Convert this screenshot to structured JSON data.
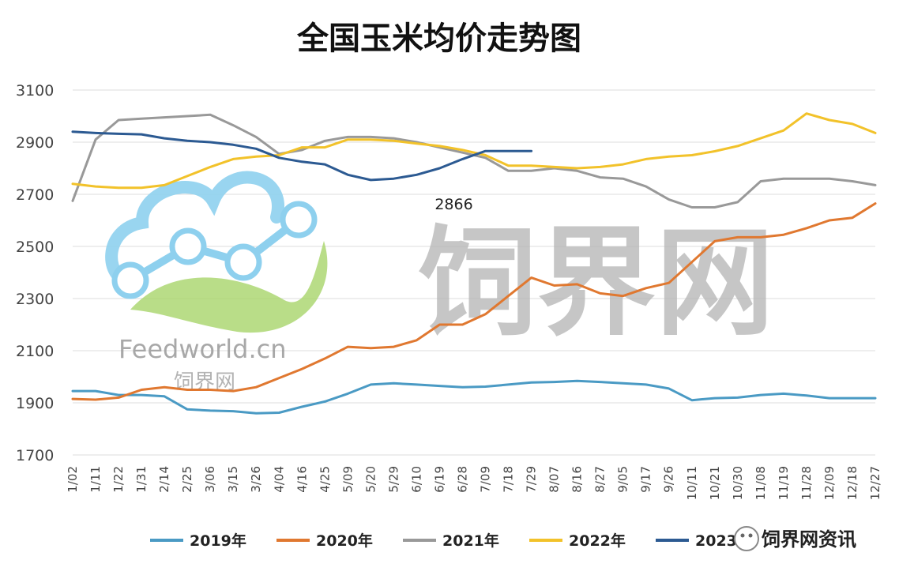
{
  "chart_data": {
    "type": "line",
    "title": "全国玉米均价走势图",
    "xlabel": "",
    "ylabel": "",
    "ylim": [
      1700,
      3100
    ],
    "yticks": [
      "3100",
      "2900",
      "2700",
      "2500",
      "2300",
      "2100",
      "1900",
      "1700"
    ],
    "grid": true,
    "legend_position": "bottom",
    "categories": [
      "1/02",
      "1/11",
      "1/22",
      "1/31",
      "2/14",
      "2/25",
      "3/06",
      "3/15",
      "3/26",
      "4/04",
      "4/16",
      "4/25",
      "5/09",
      "5/20",
      "5/29",
      "6/10",
      "6/19",
      "6/28",
      "7/09",
      "7/18",
      "7/29",
      "8/07",
      "8/16",
      "8/27",
      "9/05",
      "9/17",
      "9/26",
      "10/11",
      "10/21",
      "10/30",
      "11/08",
      "11/19",
      "11/28",
      "12/09",
      "12/18",
      "12/27"
    ],
    "series": [
      {
        "name": "2019年",
        "color": "#4a9ac4",
        "values": [
          1945,
          1945,
          1930,
          1930,
          1925,
          1875,
          1870,
          1868,
          1860,
          1862,
          1885,
          1905,
          1935,
          1970,
          1975,
          1970,
          1965,
          1960,
          1962,
          1970,
          1978,
          1980,
          1984,
          1980,
          1975,
          1970,
          1955,
          1910,
          1918,
          1920,
          1930,
          1935,
          1928,
          1918,
          1918,
          1918
        ]
      },
      {
        "name": "2020年",
        "color": "#e07830",
        "values": [
          1915,
          1912,
          1920,
          1950,
          1960,
          1950,
          1950,
          1945,
          1960,
          1995,
          2030,
          2070,
          2115,
          2110,
          2115,
          2140,
          2200,
          2200,
          2240,
          2310,
          2380,
          2350,
          2355,
          2320,
          2310,
          2340,
          2360,
          2440,
          2520,
          2535,
          2535,
          2545,
          2570,
          2600,
          2610,
          2665
        ]
      },
      {
        "name": "2021年",
        "color": "#999999",
        "values": [
          2675,
          2910,
          2985,
          2990,
          2995,
          3000,
          3005,
          2965,
          2920,
          2855,
          2870,
          2905,
          2920,
          2920,
          2915,
          2900,
          2880,
          2860,
          2840,
          2790,
          2790,
          2800,
          2790,
          2765,
          2760,
          2730,
          2680,
          2650,
          2650,
          2670,
          2750,
          2760,
          2760,
          2760,
          2750,
          2735
        ]
      },
      {
        "name": "2022年",
        "color": "#f2c22a",
        "values": [
          2740,
          2730,
          2725,
          2725,
          2735,
          2770,
          2805,
          2835,
          2845,
          2850,
          2880,
          2880,
          2910,
          2910,
          2905,
          2895,
          2885,
          2870,
          2850,
          2810,
          2810,
          2805,
          2800,
          2805,
          2815,
          2835,
          2845,
          2850,
          2865,
          2885,
          2915,
          2945,
          3010,
          2985,
          2970,
          2935
        ]
      },
      {
        "name": "2023年",
        "color": "#2c5a92",
        "values": [
          2940,
          2935,
          2932,
          2930,
          2915,
          2905,
          2900,
          2890,
          2875,
          2840,
          2825,
          2815,
          2775,
          2755,
          2760,
          2775,
          2800,
          2835,
          2866,
          2866,
          2866,
          null,
          null,
          null,
          null,
          null,
          null,
          null,
          null,
          null,
          null,
          null,
          null,
          null,
          null,
          null
        ]
      }
    ],
    "annotations": [
      {
        "text": "2866",
        "x": "7/09",
        "y": 2866
      }
    ],
    "legend": [
      {
        "label": "2019年",
        "color": "#4a9ac4"
      },
      {
        "label": "2020年",
        "color": "#e07830"
      },
      {
        "label": "2021年",
        "color": "#999999"
      },
      {
        "label": "2022年",
        "color": "#f2c22a"
      },
      {
        "label": "2023",
        "color": "#2c5a92"
      }
    ]
  },
  "watermark": {
    "center_text": "饲界网",
    "logo_en": "Feedworld.cn",
    "logo_cn": "饲界网",
    "badge_text": "饲界网资讯",
    "colors": {
      "cloud": "#8ed0ee",
      "leaf": "#a7d46a",
      "node": "#ffffff"
    }
  }
}
